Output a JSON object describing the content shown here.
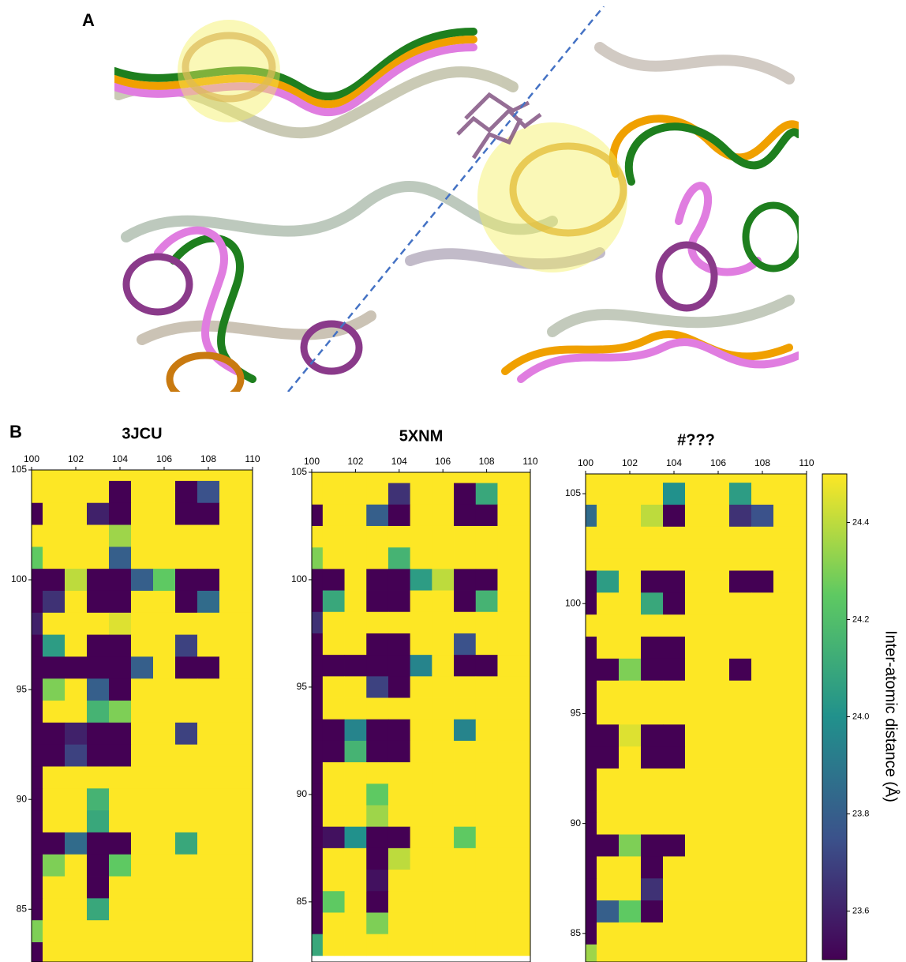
{
  "panel_labels": [
    "A",
    "B"
  ],
  "colorbar": {
    "label": "Inter-atomic distance (Å)",
    "lim": [
      23.5,
      24.5
    ],
    "ticks": [
      23.6,
      23.8,
      {
        "value": 24,
        "label": "24.0"
      },
      24.2,
      24.4
    ]
  },
  "chart_data": [
    {
      "type": "heatmap",
      "title": "3JCU",
      "x": [
        100,
        101,
        102,
        103,
        104,
        105,
        106,
        107,
        108,
        109,
        110
      ],
      "y": [
        105,
        104,
        103,
        102,
        101,
        100,
        99,
        98,
        97,
        96,
        95,
        94,
        93,
        92,
        91,
        90,
        89,
        88,
        87,
        86,
        85,
        84,
        83
      ],
      "xlim": [
        100,
        110
      ],
      "ylim": [
        82.6,
        105
      ],
      "xticks": [
        100,
        102,
        104,
        106,
        108,
        110
      ],
      "yticks": [
        85,
        90,
        95,
        100,
        105
      ],
      "values": [
        [
          24.5,
          24.5,
          24.5,
          24.5,
          24.5,
          24.5,
          24.5,
          24.5,
          24.5,
          24.5,
          24.5
        ],
        [
          24.5,
          24.5,
          24.5,
          24.5,
          23.5,
          24.5,
          24.5,
          23.5,
          23.75,
          24.5,
          24.5
        ],
        [
          23.5,
          24.5,
          24.5,
          23.6,
          23.5,
          24.5,
          24.5,
          23.5,
          23.5,
          24.5,
          24.5
        ],
        [
          24.5,
          24.5,
          24.5,
          24.5,
          24.35,
          24.5,
          24.5,
          24.5,
          24.5,
          24.5,
          24.5
        ],
        [
          24.25,
          24.5,
          24.5,
          24.5,
          23.8,
          24.5,
          24.5,
          24.5,
          24.5,
          24.5,
          24.5
        ],
        [
          23.5,
          23.5,
          24.4,
          23.5,
          23.5,
          23.8,
          24.25,
          23.5,
          23.5,
          24.5,
          24.5
        ],
        [
          23.5,
          23.65,
          24.5,
          23.5,
          23.5,
          24.5,
          24.5,
          23.5,
          23.85,
          24.5,
          24.5
        ],
        [
          23.6,
          24.5,
          24.5,
          24.5,
          24.45,
          24.5,
          24.5,
          24.5,
          24.5,
          24.5,
          24.5
        ],
        [
          23.5,
          24.05,
          24.5,
          23.5,
          23.5,
          24.5,
          24.5,
          23.7,
          24.5,
          24.5,
          24.5
        ],
        [
          23.5,
          23.5,
          23.5,
          23.5,
          23.5,
          23.8,
          24.5,
          23.5,
          23.5,
          24.5,
          24.5
        ],
        [
          23.5,
          24.3,
          24.5,
          23.8,
          23.5,
          24.5,
          24.5,
          24.5,
          24.5,
          24.5,
          24.5
        ],
        [
          23.5,
          24.5,
          24.5,
          24.15,
          24.3,
          24.5,
          24.5,
          24.5,
          24.5,
          24.5,
          24.5
        ],
        [
          23.5,
          23.5,
          23.6,
          23.5,
          23.5,
          24.5,
          24.5,
          23.7,
          24.5,
          24.5,
          24.5
        ],
        [
          23.5,
          23.5,
          23.7,
          23.5,
          23.5,
          24.5,
          24.5,
          24.5,
          24.5,
          24.5,
          24.5
        ],
        [
          23.5,
          24.5,
          24.5,
          24.5,
          24.5,
          24.5,
          24.5,
          24.5,
          24.5,
          24.5,
          24.5
        ],
        [
          23.5,
          24.5,
          24.5,
          24.15,
          24.5,
          24.5,
          24.5,
          24.5,
          24.5,
          24.5,
          24.5
        ],
        [
          23.5,
          24.5,
          24.5,
          24.1,
          24.5,
          24.5,
          24.5,
          24.5,
          24.5,
          24.5,
          24.5
        ],
        [
          23.5,
          23.5,
          23.85,
          23.5,
          23.5,
          24.5,
          24.5,
          24.1,
          24.5,
          24.5,
          24.5
        ],
        [
          23.5,
          24.3,
          24.5,
          23.5,
          24.25,
          24.5,
          24.5,
          24.5,
          24.5,
          24.5,
          24.5
        ],
        [
          23.5,
          24.5,
          24.5,
          23.5,
          24.5,
          24.5,
          24.5,
          24.5,
          24.5,
          24.5,
          24.5
        ],
        [
          23.5,
          24.5,
          24.5,
          24.1,
          24.5,
          24.5,
          24.5,
          24.5,
          24.5,
          24.5,
          24.5
        ],
        [
          24.3,
          24.5,
          24.5,
          24.5,
          24.5,
          24.5,
          24.5,
          24.5,
          24.5,
          24.5,
          24.5
        ],
        [
          23.5,
          24.5,
          24.5,
          24.5,
          24.5,
          24.5,
          24.5,
          24.5,
          24.5,
          24.5,
          24.5
        ]
      ]
    },
    {
      "type": "heatmap",
      "title": "5XNM",
      "x": [
        100,
        101,
        102,
        103,
        104,
        105,
        106,
        107,
        108,
        109,
        110
      ],
      "y": [
        105,
        104,
        103,
        102,
        101,
        100,
        99,
        98,
        97,
        96,
        95,
        94,
        93,
        92,
        91,
        90,
        89,
        88,
        87,
        86,
        85,
        84,
        83
      ],
      "xlim": [
        100,
        110
      ],
      "ylim": [
        82.2,
        105
      ],
      "xticks": [
        100,
        102,
        104,
        106,
        108,
        110
      ],
      "yticks": [
        85,
        90,
        95,
        100,
        105
      ],
      "values": [
        [
          24.5,
          24.5,
          24.5,
          24.5,
          24.5,
          24.5,
          24.5,
          24.5,
          24.5,
          24.5,
          24.5
        ],
        [
          24.5,
          24.5,
          24.5,
          24.5,
          23.65,
          24.5,
          24.5,
          23.5,
          24.1,
          24.5,
          24.5
        ],
        [
          23.5,
          24.5,
          24.5,
          23.8,
          23.5,
          24.5,
          24.5,
          23.5,
          23.5,
          24.5,
          24.5
        ],
        [
          24.5,
          24.5,
          24.5,
          24.5,
          24.5,
          24.5,
          24.5,
          24.5,
          24.5,
          24.5,
          24.5
        ],
        [
          24.3,
          24.5,
          24.5,
          24.5,
          24.15,
          24.5,
          24.5,
          24.5,
          24.5,
          24.5,
          24.5
        ],
        [
          23.5,
          23.5,
          24.5,
          23.5,
          23.5,
          24.05,
          24.4,
          23.5,
          23.5,
          24.5,
          24.5
        ],
        [
          23.5,
          24.1,
          24.5,
          23.5,
          23.5,
          24.5,
          24.5,
          23.5,
          24.15,
          24.5,
          24.5
        ],
        [
          23.65,
          24.5,
          24.5,
          24.5,
          24.5,
          24.5,
          24.5,
          24.5,
          24.5,
          24.5,
          24.5
        ],
        [
          23.5,
          24.5,
          24.5,
          23.5,
          23.5,
          24.5,
          24.5,
          23.75,
          24.5,
          24.5,
          24.5
        ],
        [
          23.5,
          23.5,
          23.5,
          23.5,
          23.5,
          23.95,
          24.5,
          23.5,
          23.5,
          24.5,
          24.5
        ],
        [
          23.5,
          24.5,
          24.5,
          23.7,
          23.5,
          24.5,
          24.5,
          24.5,
          24.5,
          24.5,
          24.5
        ],
        [
          23.5,
          24.5,
          24.5,
          24.5,
          24.5,
          24.5,
          24.5,
          24.5,
          24.5,
          24.5,
          24.5
        ],
        [
          23.5,
          23.5,
          23.95,
          23.5,
          23.5,
          24.5,
          24.5,
          23.95,
          24.5,
          24.5,
          24.5
        ],
        [
          23.5,
          23.5,
          24.15,
          23.5,
          23.5,
          24.5,
          24.5,
          24.5,
          24.5,
          24.5,
          24.5
        ],
        [
          23.5,
          24.5,
          24.5,
          24.5,
          24.5,
          24.5,
          24.5,
          24.5,
          24.5,
          24.5,
          24.5
        ],
        [
          23.5,
          24.5,
          24.5,
          24.25,
          24.5,
          24.5,
          24.5,
          24.5,
          24.5,
          24.5,
          24.5
        ],
        [
          23.5,
          24.5,
          24.5,
          24.35,
          24.5,
          24.5,
          24.5,
          24.5,
          24.5,
          24.5,
          24.5
        ],
        [
          23.5,
          23.55,
          24.0,
          23.5,
          23.5,
          24.5,
          24.5,
          24.25,
          24.5,
          24.5,
          24.5
        ],
        [
          23.5,
          24.5,
          24.5,
          23.5,
          24.4,
          24.5,
          24.5,
          24.5,
          24.5,
          24.5,
          24.5
        ],
        [
          23.5,
          24.5,
          24.5,
          23.55,
          24.5,
          24.5,
          24.5,
          24.5,
          24.5,
          24.5,
          24.5
        ],
        [
          23.5,
          24.25,
          24.5,
          23.5,
          24.5,
          24.5,
          24.5,
          24.5,
          24.5,
          24.5,
          24.5
        ],
        [
          23.5,
          24.5,
          24.5,
          24.3,
          24.5,
          24.5,
          24.5,
          24.5,
          24.5,
          24.5,
          24.5
        ],
        [
          24.1,
          24.5,
          24.5,
          24.5,
          24.5,
          24.5,
          24.5,
          24.5,
          24.5,
          24.5,
          24.5
        ]
      ]
    },
    {
      "type": "heatmap",
      "title": "#???",
      "x": [
        100,
        101,
        102,
        103,
        104,
        105,
        106,
        107,
        108,
        109,
        110
      ],
      "y": [
        106,
        105,
        104,
        103,
        102,
        101,
        100,
        99,
        98,
        97,
        96,
        95,
        94,
        93,
        92,
        91,
        90,
        89,
        88,
        87,
        86,
        85,
        84
      ],
      "xlim": [
        100,
        110
      ],
      "ylim": [
        83.7,
        105.9
      ],
      "xticks": [
        100,
        102,
        104,
        106,
        108,
        110
      ],
      "yticks": [
        85,
        90,
        95,
        100,
        105
      ],
      "values": [
        [
          24.5,
          24.5,
          24.5,
          24.5,
          24.5,
          24.5,
          24.5,
          24.5,
          24.5,
          24.5,
          24.5
        ],
        [
          24.5,
          24.5,
          24.5,
          24.5,
          24.0,
          24.5,
          24.5,
          24.05,
          24.5,
          24.5,
          24.5
        ],
        [
          23.85,
          24.5,
          24.5,
          24.4,
          23.5,
          24.5,
          24.5,
          23.65,
          23.75,
          24.5,
          24.5
        ],
        [
          24.5,
          24.5,
          24.5,
          24.5,
          24.5,
          24.5,
          24.5,
          24.5,
          24.5,
          24.5,
          24.5
        ],
        [
          24.5,
          24.5,
          24.5,
          24.5,
          24.5,
          24.5,
          24.5,
          24.5,
          24.5,
          24.5,
          24.5
        ],
        [
          23.5,
          24.05,
          24.5,
          23.5,
          23.5,
          24.5,
          24.5,
          23.5,
          23.5,
          24.5,
          24.5
        ],
        [
          23.5,
          24.5,
          24.5,
          24.1,
          23.5,
          24.5,
          24.5,
          24.5,
          24.5,
          24.5,
          24.5
        ],
        [
          24.5,
          24.5,
          24.5,
          24.5,
          24.5,
          24.5,
          24.5,
          24.5,
          24.5,
          24.5,
          24.5
        ],
        [
          23.5,
          24.5,
          24.5,
          23.5,
          23.5,
          24.5,
          24.5,
          24.5,
          24.5,
          24.5,
          24.5
        ],
        [
          23.5,
          23.5,
          24.3,
          23.5,
          23.5,
          24.5,
          24.5,
          23.5,
          24.5,
          24.5,
          24.5
        ],
        [
          23.5,
          24.5,
          24.5,
          24.5,
          24.5,
          24.5,
          24.5,
          24.5,
          24.5,
          24.5,
          24.5
        ],
        [
          23.5,
          24.5,
          24.5,
          24.5,
          24.5,
          24.5,
          24.5,
          24.5,
          24.5,
          24.5,
          24.5
        ],
        [
          23.5,
          23.5,
          24.45,
          23.5,
          23.5,
          24.5,
          24.5,
          24.5,
          24.5,
          24.5,
          24.5
        ],
        [
          23.5,
          23.5,
          24.5,
          23.5,
          23.5,
          24.5,
          24.5,
          24.5,
          24.5,
          24.5,
          24.5
        ],
        [
          23.5,
          24.5,
          24.5,
          24.5,
          24.5,
          24.5,
          24.5,
          24.5,
          24.5,
          24.5,
          24.5
        ],
        [
          23.5,
          24.5,
          24.5,
          24.5,
          24.5,
          24.5,
          24.5,
          24.5,
          24.5,
          24.5,
          24.5
        ],
        [
          23.5,
          24.5,
          24.5,
          24.5,
          24.5,
          24.5,
          24.5,
          24.5,
          24.5,
          24.5,
          24.5
        ],
        [
          23.5,
          23.5,
          24.3,
          23.5,
          23.5,
          24.5,
          24.5,
          24.5,
          24.5,
          24.5,
          24.5
        ],
        [
          23.5,
          24.5,
          24.5,
          23.5,
          24.5,
          24.5,
          24.5,
          24.5,
          24.5,
          24.5,
          24.5
        ],
        [
          23.5,
          24.5,
          24.5,
          23.65,
          24.5,
          24.5,
          24.5,
          24.5,
          24.5,
          24.5,
          24.5
        ],
        [
          23.5,
          23.8,
          24.25,
          23.5,
          24.5,
          24.5,
          24.5,
          24.5,
          24.5,
          24.5,
          24.5
        ],
        [
          23.5,
          24.5,
          24.5,
          24.5,
          24.5,
          24.5,
          24.5,
          24.5,
          24.5,
          24.5,
          24.5
        ],
        [
          24.35,
          24.5,
          24.5,
          24.5,
          24.5,
          24.5,
          24.5,
          24.5,
          24.5,
          24.5,
          24.5
        ]
      ]
    }
  ]
}
